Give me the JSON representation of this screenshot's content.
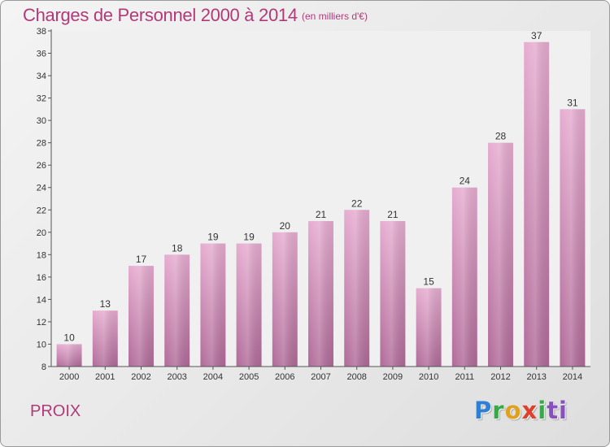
{
  "header": {
    "title": "Charges de Personnel 2000 à 2014",
    "subtitle": "(en milliers d'€)"
  },
  "footer": {
    "commune": "PROIX",
    "logo_letters": [
      "P",
      "r",
      "o",
      "x",
      "i",
      "ti"
    ]
  },
  "colors": {
    "title": "#b03a78",
    "bar_top": "#e6acd0",
    "bar_bottom": "#b06a98",
    "plot_bg": "#f0f0f0"
  },
  "chart_data": {
    "type": "bar",
    "title": "Charges de Personnel 2000 à 2014",
    "subtitle": "(en milliers d'€)",
    "categories": [
      "2000",
      "2001",
      "2002",
      "2003",
      "2004",
      "2005",
      "2006",
      "2007",
      "2008",
      "2009",
      "2010",
      "2011",
      "2012",
      "2013",
      "2014"
    ],
    "values": [
      10,
      13,
      17,
      18,
      19,
      19,
      20,
      21,
      22,
      21,
      15,
      24,
      28,
      37,
      31
    ],
    "yticks": [
      8,
      10,
      12,
      14,
      16,
      18,
      20,
      22,
      24,
      26,
      28,
      30,
      32,
      34,
      36,
      38
    ],
    "ylim": [
      8,
      38
    ],
    "xlabel": "",
    "ylabel": "",
    "grid": false,
    "data_labels": true
  }
}
